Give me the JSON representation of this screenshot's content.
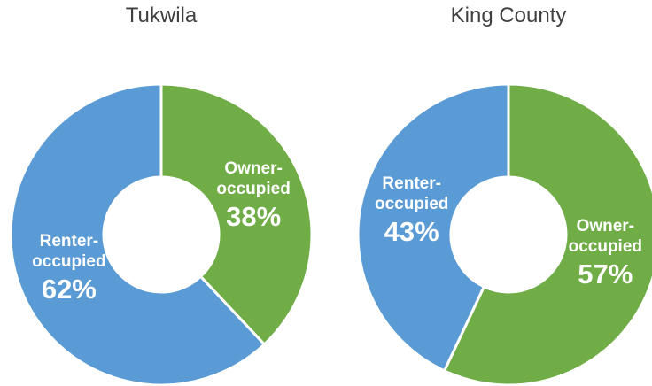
{
  "chart_data": [
    {
      "type": "donut",
      "title": "Tukwila",
      "categories": [
        "Owner-occupied",
        "Renter-occupied"
      ],
      "values": [
        38,
        62
      ],
      "value_labels": [
        "38%",
        "62%"
      ],
      "colors": [
        "#70ad47",
        "#5b9bd5"
      ]
    },
    {
      "type": "donut",
      "title": "King County",
      "categories": [
        "Owner-occupied",
        "Renter-occupied"
      ],
      "values": [
        57,
        43
      ],
      "value_labels": [
        "57%",
        "43%"
      ],
      "colors": [
        "#70ad47",
        "#5b9bd5"
      ]
    }
  ]
}
